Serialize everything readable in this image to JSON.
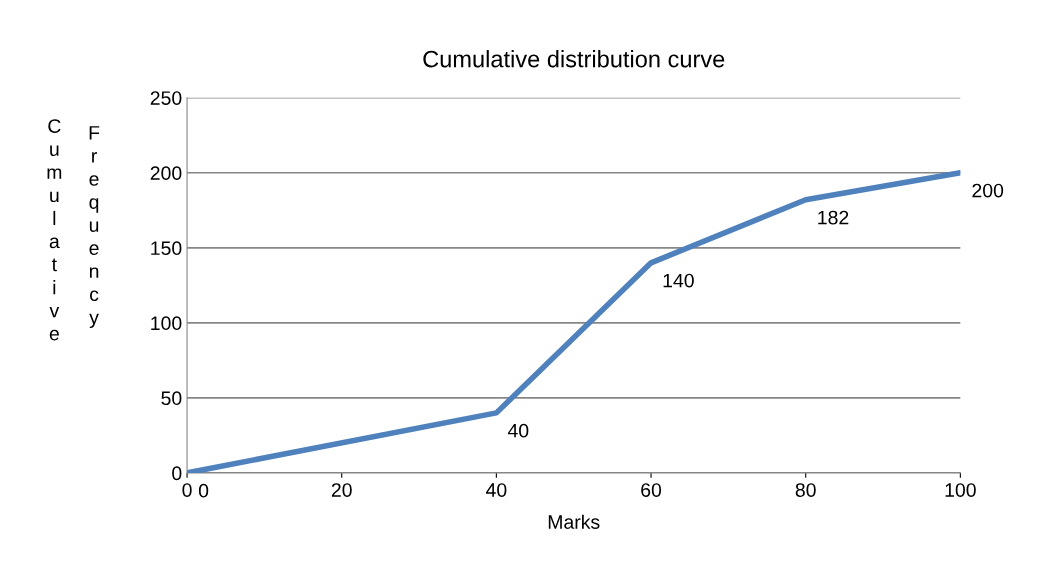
{
  "chart_data": {
    "type": "line",
    "title": "Cumulative distribution curve",
    "xlabel": "Marks",
    "ylabel": "Cumulative Frequency",
    "x": [
      0,
      40,
      60,
      80,
      100
    ],
    "series": [
      {
        "color": "#4f81bd",
        "values": [
          0,
          40,
          140,
          182,
          200
        ]
      }
    ],
    "xlim": [
      0,
      100
    ],
    "xticks": [
      0,
      20,
      40,
      60,
      80,
      100
    ],
    "ylim": [
      0,
      250
    ],
    "yticks": [
      0,
      50,
      100,
      150,
      200,
      250
    ],
    "grid": "y",
    "legend": false,
    "marker": "none",
    "line_style": "solid",
    "data_labels": true
  }
}
